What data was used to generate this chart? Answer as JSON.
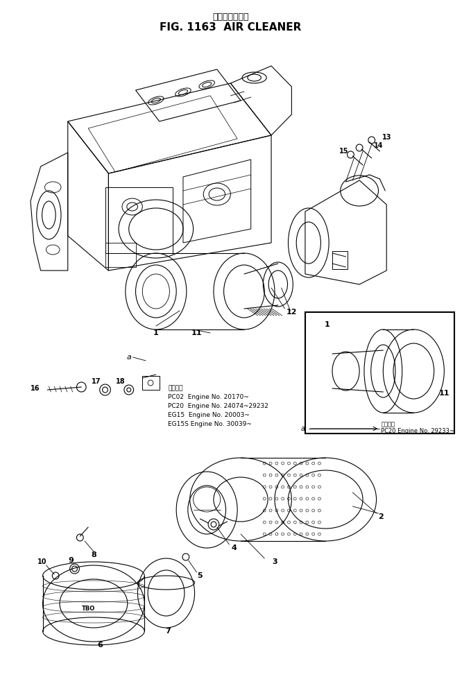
{
  "title_japanese": "エアークリーナ",
  "title_english": "FIG. 1163  AIR CLEANER",
  "bg": "#ffffff",
  "lc": "#000000",
  "fig_w": 6.79,
  "fig_h": 9.89,
  "dpi": 100,
  "app1": [
    "適用号等",
    "PC02  Engine No. 20170~",
    "PC20  Engine No. 24074~29232",
    "EG15  Engine No. 20003~",
    "EG15S Engine No. 30039~"
  ],
  "app2_label": "a",
  "app2_line": "PC20 Engine No. 29233~"
}
